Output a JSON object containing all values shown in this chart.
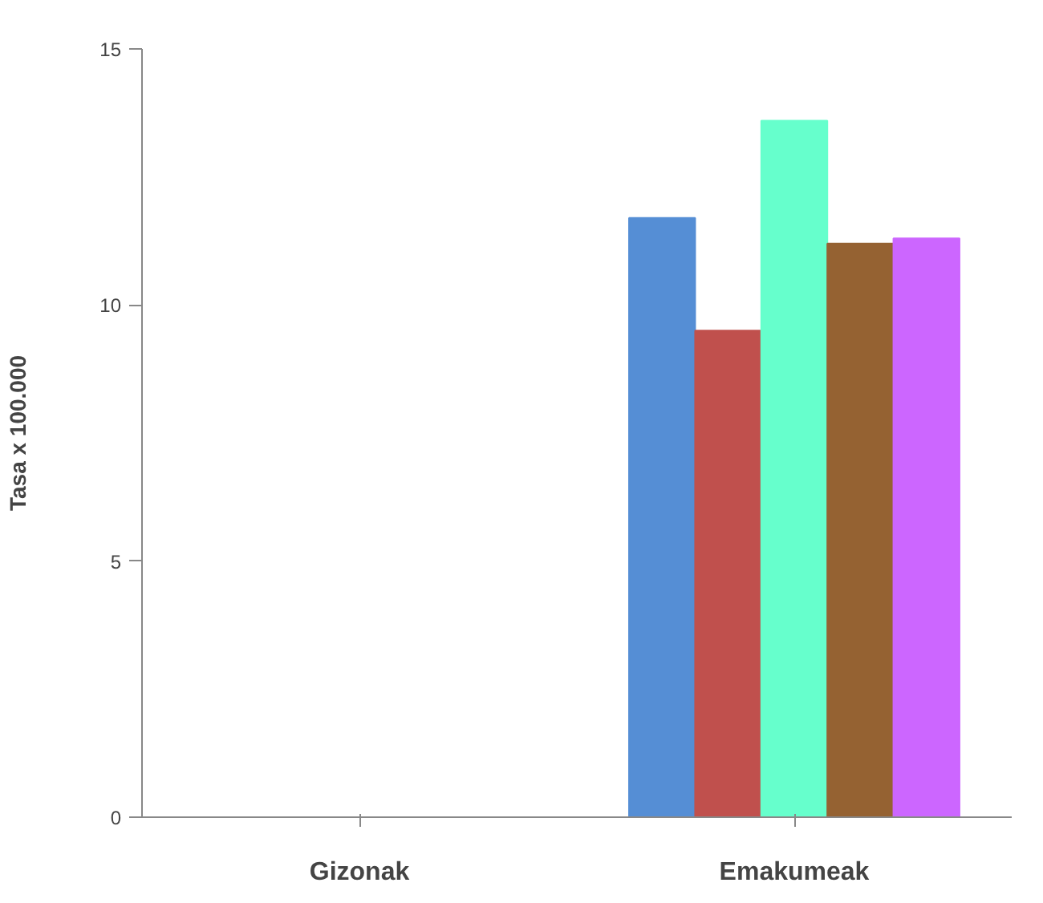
{
  "chart_data": {
    "type": "bar",
    "ylabel": "Tasa x 100.000",
    "categories": [
      "Gizonak",
      "Emakumeak"
    ],
    "series": [
      {
        "color": "#558ed5",
        "values": [
          null,
          11.7
        ]
      },
      {
        "color": "#c0504d",
        "values": [
          null,
          9.5
        ]
      },
      {
        "color": "#66ffcc",
        "values": [
          null,
          13.6
        ]
      },
      {
        "color": "#956232",
        "values": [
          null,
          11.2
        ]
      },
      {
        "color": "#cc66ff",
        "values": [
          null,
          11.3
        ]
      }
    ],
    "ylim": [
      0,
      15
    ],
    "yticks": [
      0,
      5,
      10,
      15
    ]
  }
}
